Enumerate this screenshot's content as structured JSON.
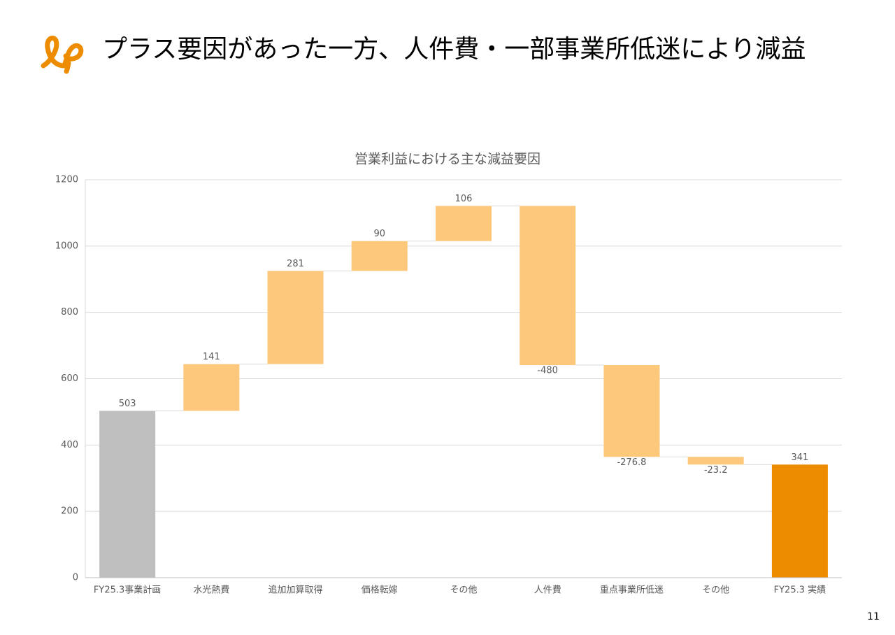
{
  "header": {
    "title": "プラス要因があった一方、人件費・一部事業所低迷により減益"
  },
  "page_number": 11,
  "chart_data": {
    "type": "waterfall",
    "title": "営業利益における主な減益要因",
    "categories": [
      "FY25.3事業計画",
      "水光熱費",
      "追加加算取得",
      "価格転嫁",
      "その他",
      "人件費",
      "重点事業所低迷",
      "その他",
      "FY25.3 実績"
    ],
    "values": [
      503,
      141,
      281,
      90,
      106,
      -480,
      -276.8,
      -23.2,
      341
    ],
    "measures": [
      "total",
      "relative",
      "relative",
      "relative",
      "relative",
      "relative",
      "relative",
      "relative",
      "total"
    ],
    "colors": [
      "#bfbfbf",
      "#fdc77c",
      "#fdc77c",
      "#fdc77c",
      "#fdc77c",
      "#fdc77c",
      "#fdc77c",
      "#fdc77c",
      "#ee8c00"
    ],
    "ylim": [
      0,
      1200
    ],
    "yticks": [
      0,
      200,
      400,
      600,
      800,
      1000,
      1200
    ],
    "grid": true
  }
}
